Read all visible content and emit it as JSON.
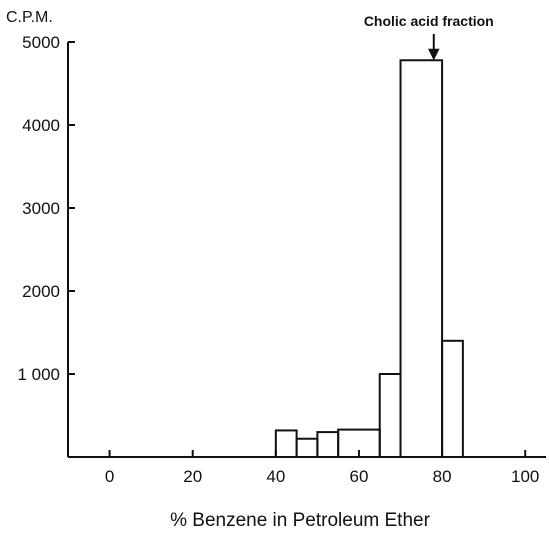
{
  "chart_data": {
    "type": "bar",
    "x": {
      "label": "% Benzene in Petroleum Ether",
      "ticks": [
        0,
        20,
        40,
        60,
        80,
        100
      ],
      "tick_labels": [
        "0",
        "20",
        "40",
        "60",
        "80",
        "100"
      ],
      "lim": [
        -10,
        105
      ]
    },
    "y": {
      "label": "C.P.M.",
      "ticks": [
        1000,
        2000,
        3000,
        4000,
        5000
      ],
      "tick_labels": [
        "1 000",
        "2000",
        "3000",
        "4000",
        "5000"
      ],
      "lim": [
        0,
        5000
      ]
    },
    "steps": [
      {
        "x0": 40,
        "x1": 45,
        "value": 320
      },
      {
        "x0": 45,
        "x1": 50,
        "value": 220
      },
      {
        "x0": 50,
        "x1": 55,
        "value": 300
      },
      {
        "x0": 55,
        "x1": 65,
        "value": 330
      },
      {
        "x0": 65,
        "x1": 70,
        "value": 1000
      },
      {
        "x0": 70,
        "x1": 80,
        "value": 4780
      },
      {
        "x0": 80,
        "x1": 85,
        "value": 1400
      }
    ],
    "annotation": {
      "text": "Cholic acid fraction",
      "x": 78,
      "y": 4780
    },
    "grid": false
  },
  "page": {
    "background": "#ffffff",
    "ink": "#111111"
  }
}
